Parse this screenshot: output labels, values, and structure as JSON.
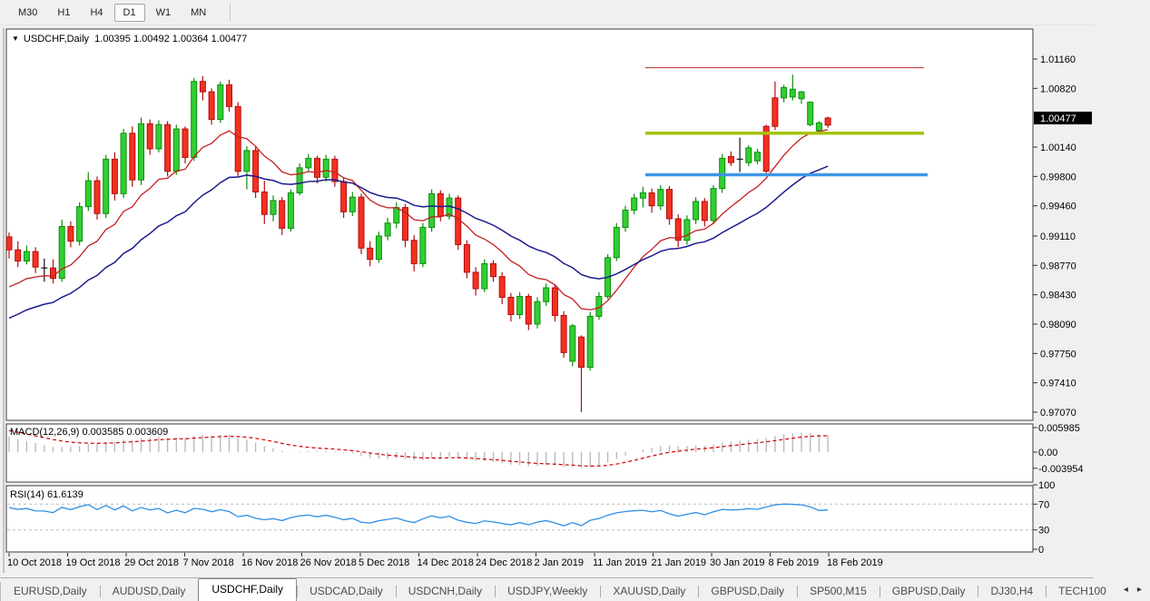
{
  "toolbar": {
    "timeframes": [
      "M30",
      "H1",
      "H4",
      "D1",
      "W1",
      "MN"
    ],
    "active_timeframe": "D1"
  },
  "chart_header": {
    "dropdown_icon": "▼",
    "title_text": "USDCHF,Daily  1.00395 1.00492 1.00364 1.00477"
  },
  "indicator_titles": {
    "macd": "MACD(12,26,9) 0.003585 0.003609",
    "rsi": "RSI(14) 61.6139"
  },
  "price_axis": {
    "current_label": "1.00477",
    "label_bg": "#000000",
    "label_fg": "#ffffff"
  },
  "tabbar": {
    "tabs": [
      "EURUSD,Daily",
      "AUDUSD,Daily",
      "USDCHF,Daily",
      "USDCAD,Daily",
      "USDCNH,Daily",
      "USDJPY,Weekly",
      "XAUUSD,Daily",
      "GBPUSD,Daily",
      "SP500,M15",
      "GBPUSD,Daily",
      "DJ30,H4",
      "TECH100"
    ],
    "active_index": 2,
    "scroll_left": "◂",
    "scroll_right": "▸"
  },
  "colors": {
    "bull_fill": "#33CE33",
    "bull_stroke": "#0B8F0B",
    "bear_fill": "#F5301F",
    "bear_stroke": "#B01010",
    "doji": "#111111",
    "ma_fast": "#C42020",
    "ma_slow": "#1B1B8F",
    "hline_red": "#C74A4A",
    "hline_olive": "#A6C30B",
    "hline_blue": "#3D97E4",
    "macd_bar": "#B6B6B6",
    "macd_signal": "#D40000",
    "rsi_line": "#2E8FE6",
    "rsi_level": "#BBBBBB",
    "pane_border": "#3C3C3C",
    "axis_text": "#000000"
  },
  "chart_data": {
    "type": "candlestick",
    "symbol": "USDCHF",
    "timeframe": "Daily",
    "current_bar": {
      "open": 1.00395,
      "high": 1.00492,
      "low": 1.00364,
      "close": 1.00477
    },
    "price_ticks": [
      1.0116,
      1.0082,
      1.0014,
      0.998,
      0.9946,
      0.9911,
      0.9877,
      0.9843,
      0.9809,
      0.9775,
      0.9741,
      0.9707
    ],
    "current_price": 1.00477,
    "y_range": [
      0.96975,
      1.01507
    ],
    "dates": [
      "10 Oct 2018",
      "19 Oct 2018",
      "29 Oct 2018",
      "7 Nov 2018",
      "16 Nov 2018",
      "26 Nov 2018",
      "5 Dec 2018",
      "14 Dec 2018",
      "24 Dec 2018",
      "2 Jan 2019",
      "11 Jan 2019",
      "21 Jan 2019",
      "30 Jan 2019",
      "8 Feb 2019",
      "18 Feb 2019"
    ],
    "hlines": [
      {
        "price": 1.0106,
        "color_key": "hline_red",
        "width": 1.2,
        "x_start": 711,
        "x_end": 1018
      },
      {
        "price": 1.003,
        "color_key": "hline_olive",
        "width": 3.5,
        "x_start": 711,
        "x_end": 1018
      },
      {
        "price": 0.9982,
        "color_key": "hline_blue",
        "width": 3.5,
        "x_start": 711,
        "x_end": 1022
      }
    ],
    "moving_averages": [
      {
        "name": "fast",
        "period": 13,
        "seed": 0.9845,
        "color_key": "ma_fast",
        "stroke_width": 1.3
      },
      {
        "name": "slow",
        "period": 28,
        "seed": 0.981,
        "color_key": "ma_slow",
        "stroke_width": 1.5
      }
    ],
    "macd": {
      "params": [
        12,
        26,
        9
      ],
      "current_macd": 0.003585,
      "current_signal": 0.003609,
      "axis": [
        {
          "label": "0.005985",
          "value": 0.005985
        },
        {
          "label": "0.00",
          "value": 0.0
        },
        {
          "label": "-0.003954",
          "value": -0.003954
        }
      ],
      "seed_fast": 0.9935,
      "seed_slow": 0.989,
      "seed_signal": 0.0056
    },
    "rsi": {
      "period": 14,
      "current": 61.6139,
      "axis": [
        100,
        70,
        30,
        0
      ],
      "levels": [
        70,
        30
      ],
      "seed_gain": 0.0016,
      "seed_loss": 0.0009
    },
    "candles": [
      [
        0.991,
        0.9915,
        0.9885,
        0.9895,
        "r"
      ],
      [
        0.9895,
        0.9905,
        0.9875,
        0.9882,
        "r"
      ],
      [
        0.9882,
        0.99,
        0.9878,
        0.9893,
        "g"
      ],
      [
        0.9893,
        0.9898,
        0.9868,
        0.9875,
        "r"
      ],
      [
        0.9874,
        0.9885,
        0.9858,
        0.9874,
        "k"
      ],
      [
        0.9874,
        0.9884,
        0.9856,
        0.9862,
        "r"
      ],
      [
        0.9862,
        0.993,
        0.9858,
        0.9922,
        "g"
      ],
      [
        0.9922,
        0.9928,
        0.9898,
        0.9905,
        "r"
      ],
      [
        0.9905,
        0.995,
        0.99,
        0.9945,
        "g"
      ],
      [
        0.9945,
        0.9985,
        0.994,
        0.9975,
        "g"
      ],
      [
        0.9975,
        0.998,
        0.993,
        0.9937,
        "r"
      ],
      [
        0.9937,
        1.0005,
        0.9932,
        1.0,
        "g"
      ],
      [
        1.0,
        1.0008,
        0.9952,
        0.996,
        "r"
      ],
      [
        0.996,
        1.0035,
        0.9955,
        1.003,
        "g"
      ],
      [
        1.003,
        1.0038,
        0.9968,
        0.9976,
        "r"
      ],
      [
        0.9976,
        1.0048,
        0.997,
        1.0041,
        "g"
      ],
      [
        1.0041,
        1.0046,
        1.0005,
        1.0012,
        "r"
      ],
      [
        1.0012,
        1.0045,
        1.0008,
        1.004,
        "g"
      ],
      [
        1.004,
        1.0044,
        0.998,
        0.9986,
        "r"
      ],
      [
        0.9986,
        1.004,
        0.9982,
        1.0035,
        "g"
      ],
      [
        1.0035,
        1.0038,
        0.9995,
        1.0002,
        "r"
      ],
      [
        1.0002,
        1.0094,
        0.9998,
        1.009,
        "g"
      ],
      [
        1.009,
        1.0096,
        1.0068,
        1.0078,
        "r"
      ],
      [
        1.0078,
        1.0082,
        1.004,
        1.0046,
        "r"
      ],
      [
        1.0046,
        1.009,
        1.0042,
        1.0086,
        "g"
      ],
      [
        1.0086,
        1.0092,
        1.0055,
        1.0061,
        "r"
      ],
      [
        1.0061,
        1.0066,
        0.998,
        0.9986,
        "r"
      ],
      [
        0.9986,
        1.0015,
        0.9965,
        1.001,
        "g"
      ],
      [
        1.001,
        1.0014,
        0.9955,
        0.9962,
        "r"
      ],
      [
        0.9962,
        0.9975,
        0.9925,
        0.9936,
        "r"
      ],
      [
        0.9936,
        0.9958,
        0.9928,
        0.9952,
        "g"
      ],
      [
        0.9952,
        0.9956,
        0.9912,
        0.992,
        "r"
      ],
      [
        0.992,
        0.9965,
        0.9916,
        0.9961,
        "g"
      ],
      [
        0.9961,
        0.9995,
        0.9958,
        0.999,
        "g"
      ],
      [
        0.999,
        1.0006,
        0.9985,
        1.0001,
        "g"
      ],
      [
        1.0001,
        1.0004,
        0.9972,
        0.9979,
        "r"
      ],
      [
        0.9979,
        1.0005,
        0.9974,
        1.0,
        "g"
      ],
      [
        1.0,
        1.0004,
        0.9968,
        0.9974,
        "r"
      ],
      [
        0.9974,
        0.9978,
        0.9932,
        0.9939,
        "r"
      ],
      [
        0.9939,
        0.9962,
        0.9934,
        0.9956,
        "g"
      ],
      [
        0.9956,
        0.996,
        0.989,
        0.9897,
        "r"
      ],
      [
        0.9897,
        0.9905,
        0.9876,
        0.9884,
        "r"
      ],
      [
        0.9884,
        0.9916,
        0.988,
        0.9911,
        "g"
      ],
      [
        0.9911,
        0.9932,
        0.9906,
        0.9926,
        "g"
      ],
      [
        0.9926,
        0.995,
        0.992,
        0.9944,
        "g"
      ],
      [
        0.9944,
        0.9948,
        0.9898,
        0.9906,
        "r"
      ],
      [
        0.9906,
        0.9912,
        0.987,
        0.9879,
        "r"
      ],
      [
        0.9879,
        0.9926,
        0.9875,
        0.9921,
        "g"
      ],
      [
        0.9921,
        0.9965,
        0.9916,
        0.996,
        "g"
      ],
      [
        0.996,
        0.9964,
        0.9928,
        0.9934,
        "r"
      ],
      [
        0.9934,
        0.996,
        0.993,
        0.9955,
        "g"
      ],
      [
        0.9955,
        0.9958,
        0.9895,
        0.9901,
        "r"
      ],
      [
        0.9901,
        0.9906,
        0.9862,
        0.9869,
        "r"
      ],
      [
        0.9869,
        0.9875,
        0.9842,
        0.985,
        "r"
      ],
      [
        0.985,
        0.9884,
        0.9846,
        0.9879,
        "g"
      ],
      [
        0.9879,
        0.9883,
        0.9858,
        0.9864,
        "r"
      ],
      [
        0.9864,
        0.9869,
        0.9832,
        0.984,
        "r"
      ],
      [
        0.984,
        0.9845,
        0.9812,
        0.982,
        "r"
      ],
      [
        0.982,
        0.9846,
        0.9815,
        0.9841,
        "g"
      ],
      [
        0.9841,
        0.9844,
        0.9802,
        0.9809,
        "r"
      ],
      [
        0.9809,
        0.984,
        0.9804,
        0.9835,
        "g"
      ],
      [
        0.9835,
        0.9856,
        0.983,
        0.9851,
        "g"
      ],
      [
        0.9851,
        0.9855,
        0.9812,
        0.9819,
        "r"
      ],
      [
        0.9819,
        0.9824,
        0.977,
        0.9776,
        "r"
      ],
      [
        0.9766,
        0.9809,
        0.976,
        0.9807,
        "g"
      ],
      [
        0.9794,
        0.9796,
        0.9707,
        0.9759,
        "r"
      ],
      [
        0.9759,
        0.9823,
        0.9755,
        0.9818,
        "g"
      ],
      [
        0.9818,
        0.9846,
        0.9814,
        0.9841,
        "g"
      ],
      [
        0.9841,
        0.989,
        0.9838,
        0.9886,
        "g"
      ],
      [
        0.9886,
        0.9926,
        0.9882,
        0.9921,
        "g"
      ],
      [
        0.9921,
        0.9946,
        0.9916,
        0.9941,
        "g"
      ],
      [
        0.9941,
        0.996,
        0.9936,
        0.9955,
        "g"
      ],
      [
        0.9955,
        0.9968,
        0.9944,
        0.9961,
        "g"
      ],
      [
        0.9961,
        0.9966,
        0.9938,
        0.9946,
        "r"
      ],
      [
        0.9946,
        0.997,
        0.9941,
        0.9965,
        "g"
      ],
      [
        0.9965,
        0.9969,
        0.9924,
        0.9931,
        "r"
      ],
      [
        0.9931,
        0.9936,
        0.9898,
        0.9906,
        "r"
      ],
      [
        0.9906,
        0.9935,
        0.9901,
        0.993,
        "g"
      ],
      [
        0.993,
        0.9956,
        0.9925,
        0.9951,
        "g"
      ],
      [
        0.9951,
        0.9955,
        0.9922,
        0.9929,
        "r"
      ],
      [
        0.9929,
        0.997,
        0.9925,
        0.9966,
        "g"
      ],
      [
        0.9966,
        1.0006,
        0.9961,
        1.0001,
        "g"
      ],
      [
        1.0003,
        1.0009,
        0.9992,
        0.9996,
        "r"
      ],
      [
        1.0,
        1.0025,
        0.9985,
        1.0,
        "k"
      ],
      [
        0.9996,
        1.0016,
        0.9992,
        1.0013,
        "g"
      ],
      [
        0.9998,
        1.0012,
        0.9994,
        1.0008,
        "g"
      ],
      [
        0.9986,
        1.004,
        0.9984,
        1.0038,
        "r"
      ],
      [
        1.0038,
        1.009,
        1.0034,
        1.0071,
        "r"
      ],
      [
        1.0071,
        1.0086,
        1.0066,
        1.0083,
        "g"
      ],
      [
        1.0072,
        1.0098,
        1.0068,
        1.0081,
        "g"
      ],
      [
        1.007,
        1.0079,
        1.0064,
        1.0078,
        "g"
      ],
      [
        1.004,
        1.0067,
        1.0038,
        1.0066,
        "g"
      ],
      [
        1.0033,
        1.0044,
        1.003,
        1.0042,
        "g"
      ],
      [
        1.00395,
        1.00492,
        1.00364,
        1.00477,
        "r"
      ]
    ]
  }
}
